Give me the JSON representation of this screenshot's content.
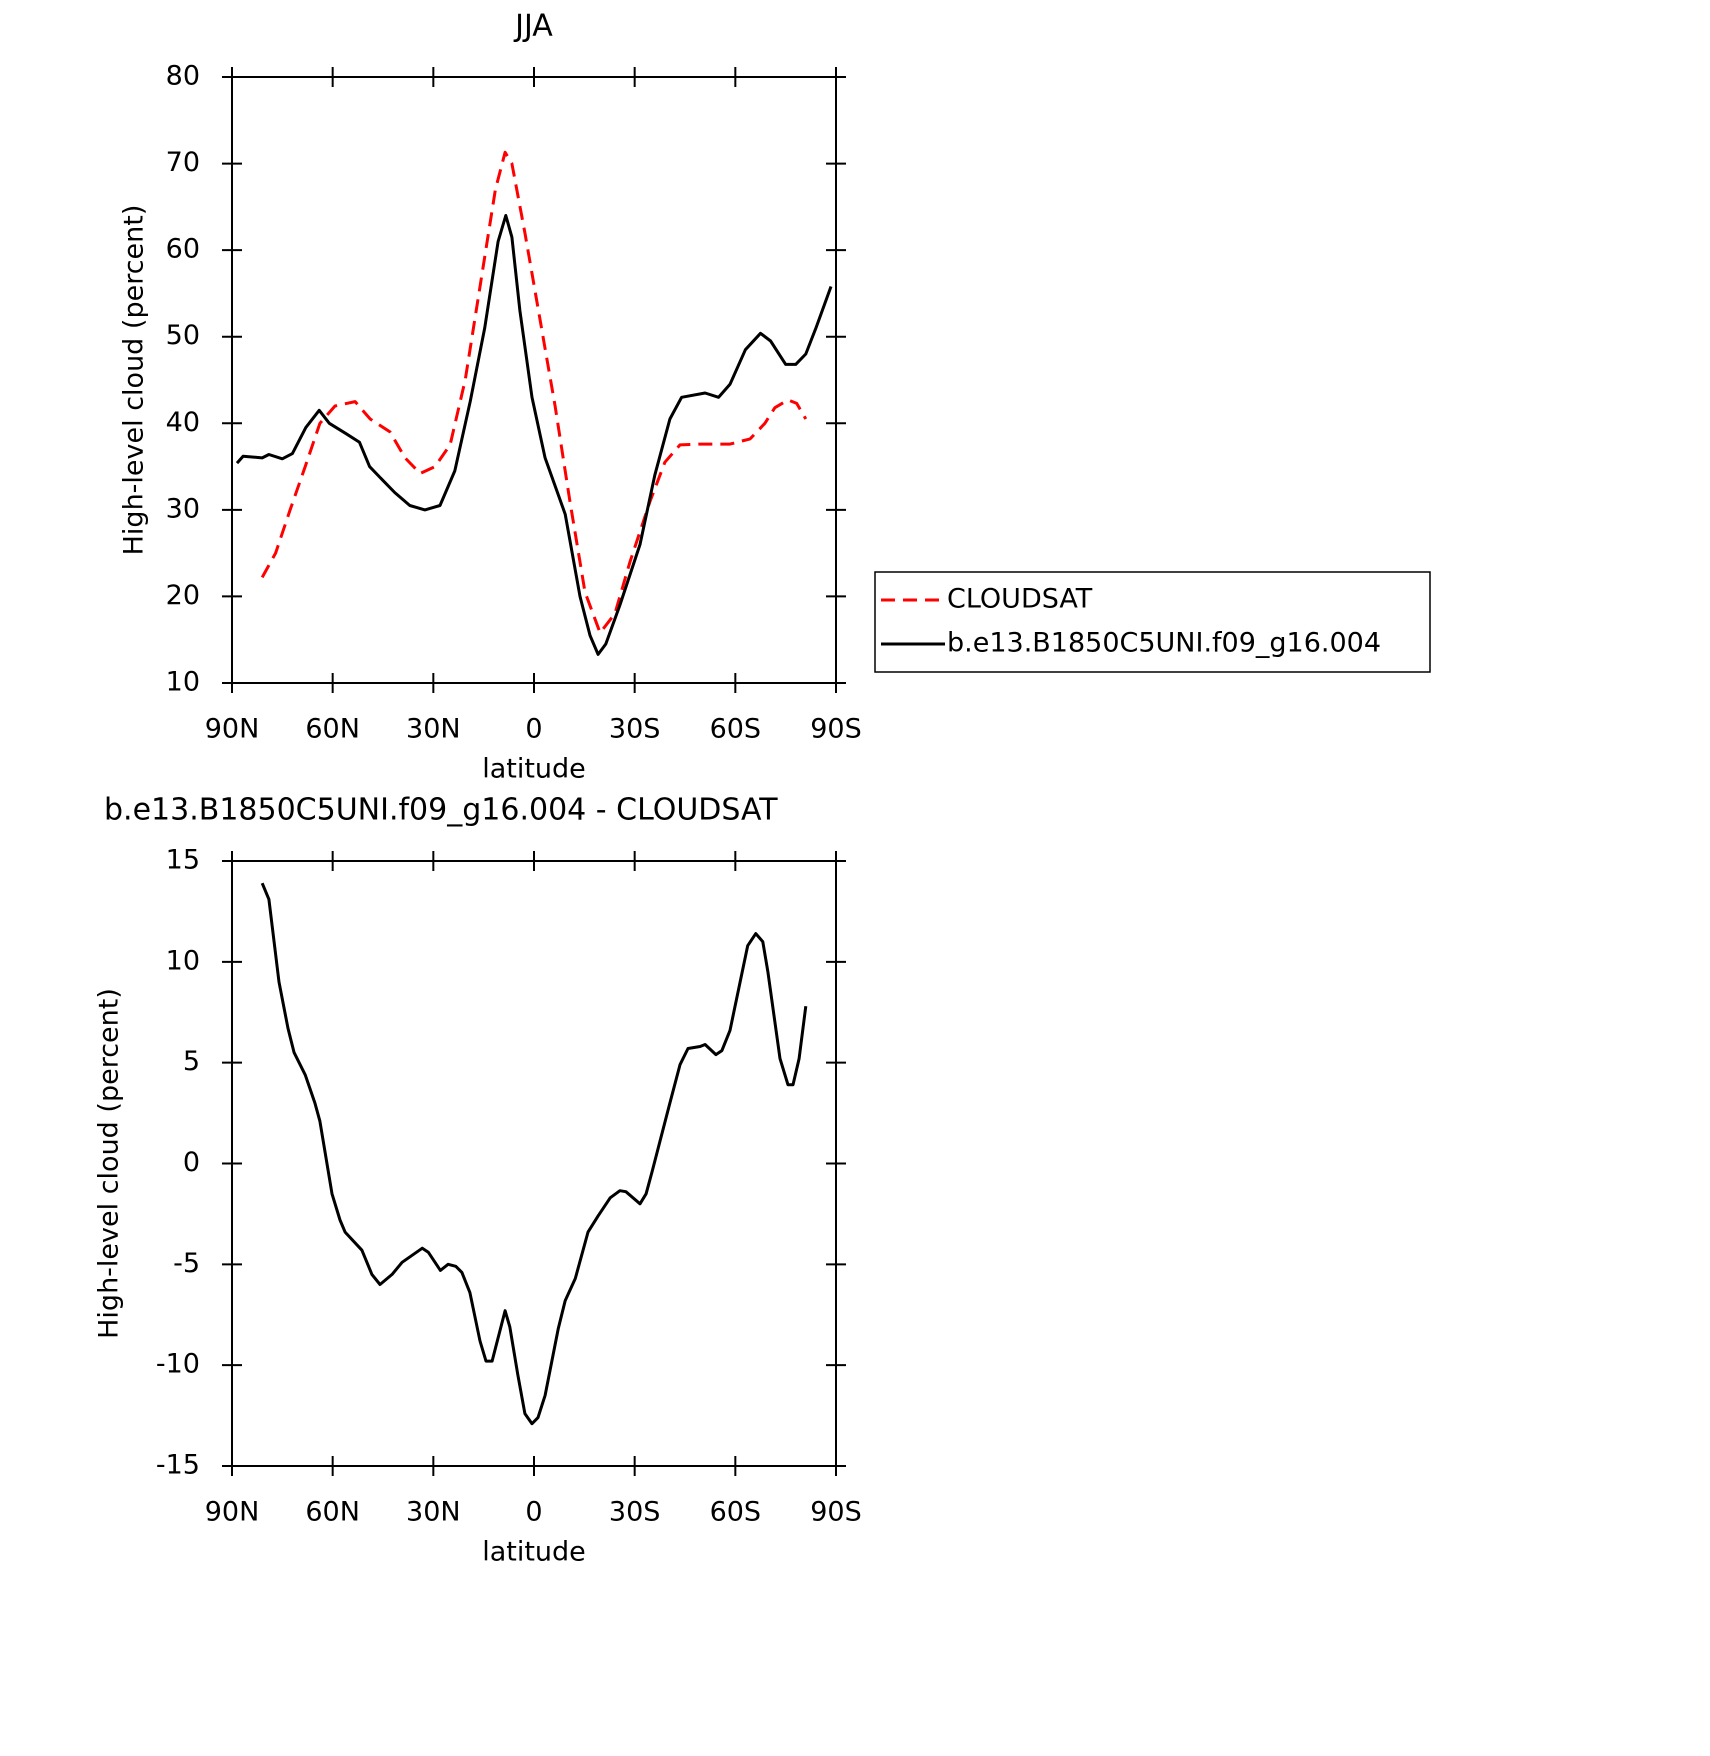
{
  "chart_data": [
    {
      "type": "line",
      "title": "JJA",
      "xlabel": "latitude",
      "ylabel": "High-level cloud (percent)",
      "xlim": [
        90,
        -90
      ],
      "ylim": [
        10,
        80
      ],
      "xticks": [
        {
          "value": 90,
          "label": "90N"
        },
        {
          "value": 60,
          "label": "60N"
        },
        {
          "value": 30,
          "label": "30N"
        },
        0,
        {
          "value": -30,
          "label": "30S"
        },
        {
          "value": -60,
          "label": "60S"
        },
        {
          "value": -90,
          "label": "90S"
        }
      ],
      "yticks": [
        10,
        20,
        30,
        40,
        50,
        60,
        70,
        80
      ],
      "legend": "right",
      "series": [
        {
          "name": "CLOUDSAT",
          "color": "#ff0000",
          "dash": true,
          "x": [
            81,
            77,
            72.7,
            68.2,
            63.8,
            59.3,
            53.3,
            48.8,
            42.9,
            38.4,
            33.9,
            29.5,
            25,
            20.5,
            16,
            11.5,
            8.6,
            6.6,
            2.7,
            -1.8,
            -6.3,
            -10.7,
            -15.2,
            -19.7,
            -24.1,
            -28.6,
            -34.6,
            -39,
            -43.5,
            -49.5,
            -58.4,
            -64.4,
            -68.8,
            -71.8,
            -75.7,
            -78.3,
            -81
          ],
          "values": [
            22.2,
            25.0,
            30.0,
            35.0,
            40.0,
            42.0,
            42.5,
            40.5,
            39.0,
            36.0,
            34.2,
            35.0,
            37.5,
            45.0,
            56.0,
            67.0,
            71.3,
            70.0,
            62.0,
            52.0,
            42.0,
            31.0,
            20.5,
            15.8,
            18.0,
            24.0,
            31.0,
            35.5,
            37.5,
            37.6,
            37.6,
            38.2,
            40.0,
            41.8,
            42.7,
            42.3,
            40.5
          ]
        },
        {
          "name": "b.e13.B1850C5UNI.f09_g16.004",
          "color": "#000000",
          "dash": false,
          "x": [
            88.5,
            86.7,
            81,
            79,
            75,
            72,
            68,
            64,
            61,
            56,
            52,
            49,
            46,
            41.5,
            37,
            32.5,
            28,
            23.6,
            19,
            14.7,
            10.7,
            8.4,
            6.6,
            4.2,
            0.6,
            -3.3,
            -9.3,
            -13.7,
            -16.7,
            -19.1,
            -21.4,
            -25.6,
            -31.6,
            -36,
            -40.5,
            -44,
            -51,
            -55,
            -58.4,
            -63,
            -67.5,
            -70.5,
            -75,
            -78,
            -81,
            -84,
            -88.5
          ],
          "values": [
            35.4,
            36.2,
            36.0,
            36.4,
            35.9,
            36.5,
            39.5,
            41.5,
            40.0,
            38.8,
            37.8,
            35.0,
            33.8,
            32.0,
            30.5,
            30.0,
            30.5,
            34.5,
            42.5,
            51.0,
            61.0,
            64.0,
            61.5,
            53.0,
            43.0,
            36.0,
            29.5,
            20.0,
            15.5,
            13.3,
            14.5,
            19.0,
            26.0,
            34.0,
            40.5,
            43.0,
            43.5,
            43.0,
            44.5,
            48.5,
            50.4,
            49.5,
            46.8,
            46.8,
            48.0,
            51.0,
            55.8
          ]
        }
      ]
    },
    {
      "type": "line",
      "title": "b.e13.B1850C5UNI.f09_g16.004 - CLOUDSAT",
      "xlabel": "latitude",
      "ylabel": "High-level cloud (percent)",
      "xlim": [
        90,
        -90
      ],
      "ylim": [
        -15,
        15
      ],
      "xticks": [
        {
          "value": 90,
          "label": "90N"
        },
        {
          "value": 60,
          "label": "60N"
        },
        {
          "value": 30,
          "label": "30N"
        },
        0,
        {
          "value": -30,
          "label": "30S"
        },
        {
          "value": -60,
          "label": "60S"
        },
        {
          "value": -90,
          "label": "90S"
        }
      ],
      "yticks": [
        -15,
        -10,
        -5,
        0,
        5,
        10,
        15
      ],
      "series": [
        {
          "color": "#000000",
          "dash": false,
          "x": [
            81,
            79,
            76,
            73.3,
            71.5,
            68.2,
            65.3,
            63.8,
            60.2,
            57.8,
            56.3,
            51.3,
            48.3,
            45.9,
            42.3,
            39.3,
            33.3,
            31.5,
            27.9,
            25.6,
            23.3,
            21.5,
            19.1,
            16.1,
            14.3,
            12.5,
            8.6,
            7.2,
            4.8,
            2.7,
            0.6,
            -1.2,
            -3.3,
            -7.2,
            -9.3,
            -12.3,
            -16.1,
            -19.1,
            -22.7,
            -25.6,
            -27.4,
            -31.6,
            -33.4,
            -35.2,
            -40.5,
            -43.5,
            -45.9,
            -49.5,
            -51,
            -54.2,
            -56,
            -58.4,
            -63.7,
            -66.1,
            -68.2,
            -69.7,
            -73.3,
            -75.7,
            -77.2,
            -79,
            -81
          ],
          "values": [
            13.9,
            13.1,
            9.0,
            6.7,
            5.5,
            4.4,
            3.0,
            2.1,
            -1.5,
            -2.8,
            -3.4,
            -4.3,
            -5.5,
            -6.0,
            -5.5,
            -4.9,
            -4.2,
            -4.4,
            -5.3,
            -5.0,
            -5.1,
            -5.4,
            -6.4,
            -8.8,
            -9.8,
            -9.8,
            -7.3,
            -8.1,
            -10.5,
            -12.4,
            -12.9,
            -12.6,
            -11.5,
            -8.2,
            -6.8,
            -5.7,
            -3.4,
            -2.6,
            -1.7,
            -1.35,
            -1.4,
            -2.0,
            -1.5,
            -0.4,
            3.0,
            4.9,
            5.7,
            5.8,
            5.9,
            5.4,
            5.6,
            6.6,
            10.8,
            11.4,
            11.0,
            9.5,
            5.2,
            3.9,
            3.9,
            5.2,
            7.8
          ]
        }
      ]
    }
  ]
}
